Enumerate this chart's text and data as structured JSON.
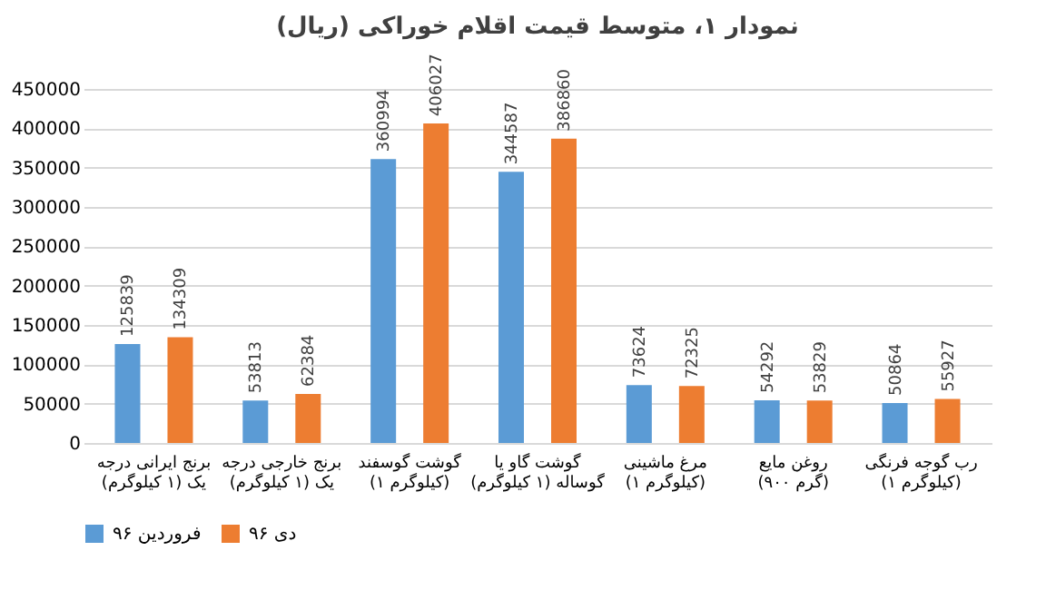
{
  "chart_data": {
    "type": "bar",
    "title": "نمودار ۱، متوسط قیمت اقلام خوراکی (ریال)",
    "categories": [
      "برنج ایرانی درجه یک (۱ کیلوگرم)",
      "برنج خارجی درجه یک (۱ کیلوگرم)",
      "گوشت گوسفند (۱ کیلوگرم)",
      "گوشت گاو یا گوساله (۱ کیلوگرم)",
      "مرغ ماشینی (۱ کیلوگرم)",
      "روغن مایع (۹۰۰ گرم)",
      "رب گوجه فرنگی (۱ کیلوگرم)"
    ],
    "series": [
      {
        "name": "فروردین ۹۶",
        "color": "#5b9bd5",
        "values": [
          125839,
          53813,
          360994,
          344587,
          73624,
          54292,
          50864
        ]
      },
      {
        "name": "دی ۹۶",
        "color": "#ed7d31",
        "values": [
          134309,
          62384,
          406027,
          386860,
          72325,
          53829,
          55927
        ]
      }
    ],
    "ylim": [
      0,
      450000
    ],
    "yticks": [
      0,
      50000,
      100000,
      150000,
      200000,
      250000,
      300000,
      350000,
      400000,
      450000
    ],
    "grid": "y",
    "legend": "bottom",
    "data_labels": true
  }
}
